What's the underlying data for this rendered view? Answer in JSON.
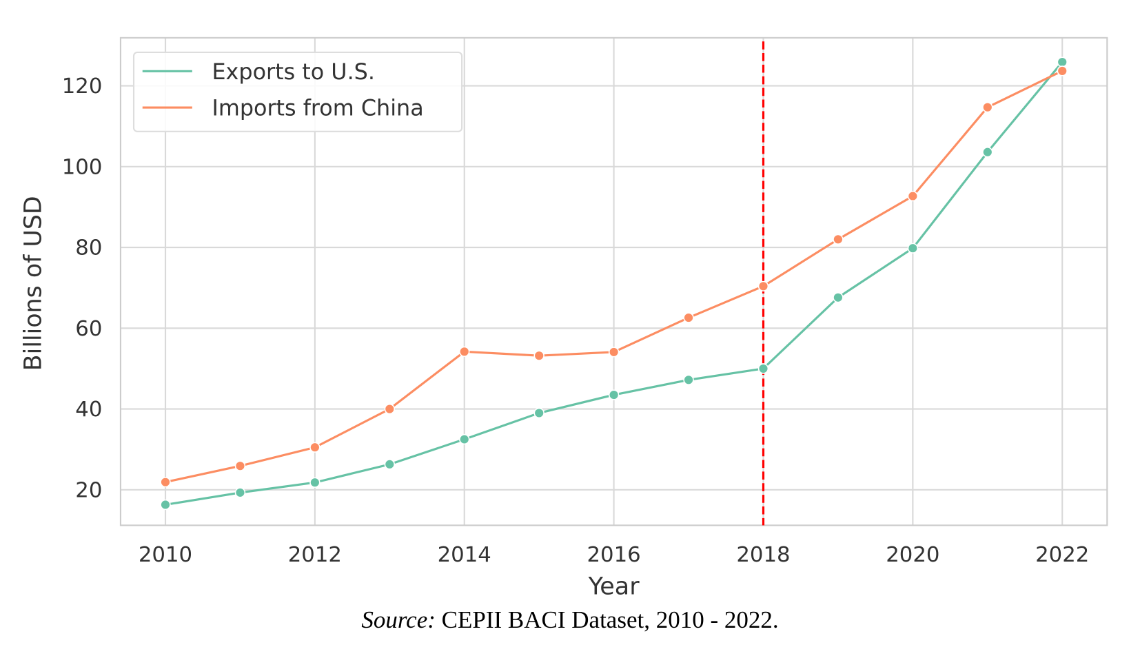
{
  "chart_data": {
    "type": "line",
    "title": "",
    "xlabel": "Year",
    "ylabel": "Billions of USD",
    "xlim": [
      2009.4,
      2022.6
    ],
    "ylim": [
      11.2,
      131.9
    ],
    "xticks": [
      2010,
      2012,
      2014,
      2016,
      2018,
      2020,
      2022
    ],
    "yticks": [
      20,
      40,
      60,
      80,
      100,
      120
    ],
    "grid": true,
    "legend_position": "top-left",
    "x": [
      2010,
      2011,
      2012,
      2013,
      2014,
      2015,
      2016,
      2017,
      2018,
      2019,
      2020,
      2021,
      2022
    ],
    "series": [
      {
        "name": "Exports to U.S.",
        "color": "#66c2a5",
        "values": [
          16.3,
          19.3,
          21.8,
          26.3,
          32.5,
          39.0,
          43.5,
          47.2,
          50.0,
          67.6,
          79.8,
          103.6,
          125.9
        ]
      },
      {
        "name": "Imports from China",
        "color": "#fc8d62",
        "values": [
          21.9,
          25.9,
          30.5,
          40.0,
          54.2,
          53.2,
          54.1,
          62.6,
          70.4,
          82.0,
          92.7,
          114.7,
          123.7
        ]
      }
    ],
    "annotations": [
      {
        "type": "vertical-dashed-line",
        "x": 2018,
        "color": "#ff0000"
      }
    ]
  },
  "caption": {
    "source_label": "Source:",
    "source_text": " CEPII BACI Dataset, 2010 - 2022."
  }
}
